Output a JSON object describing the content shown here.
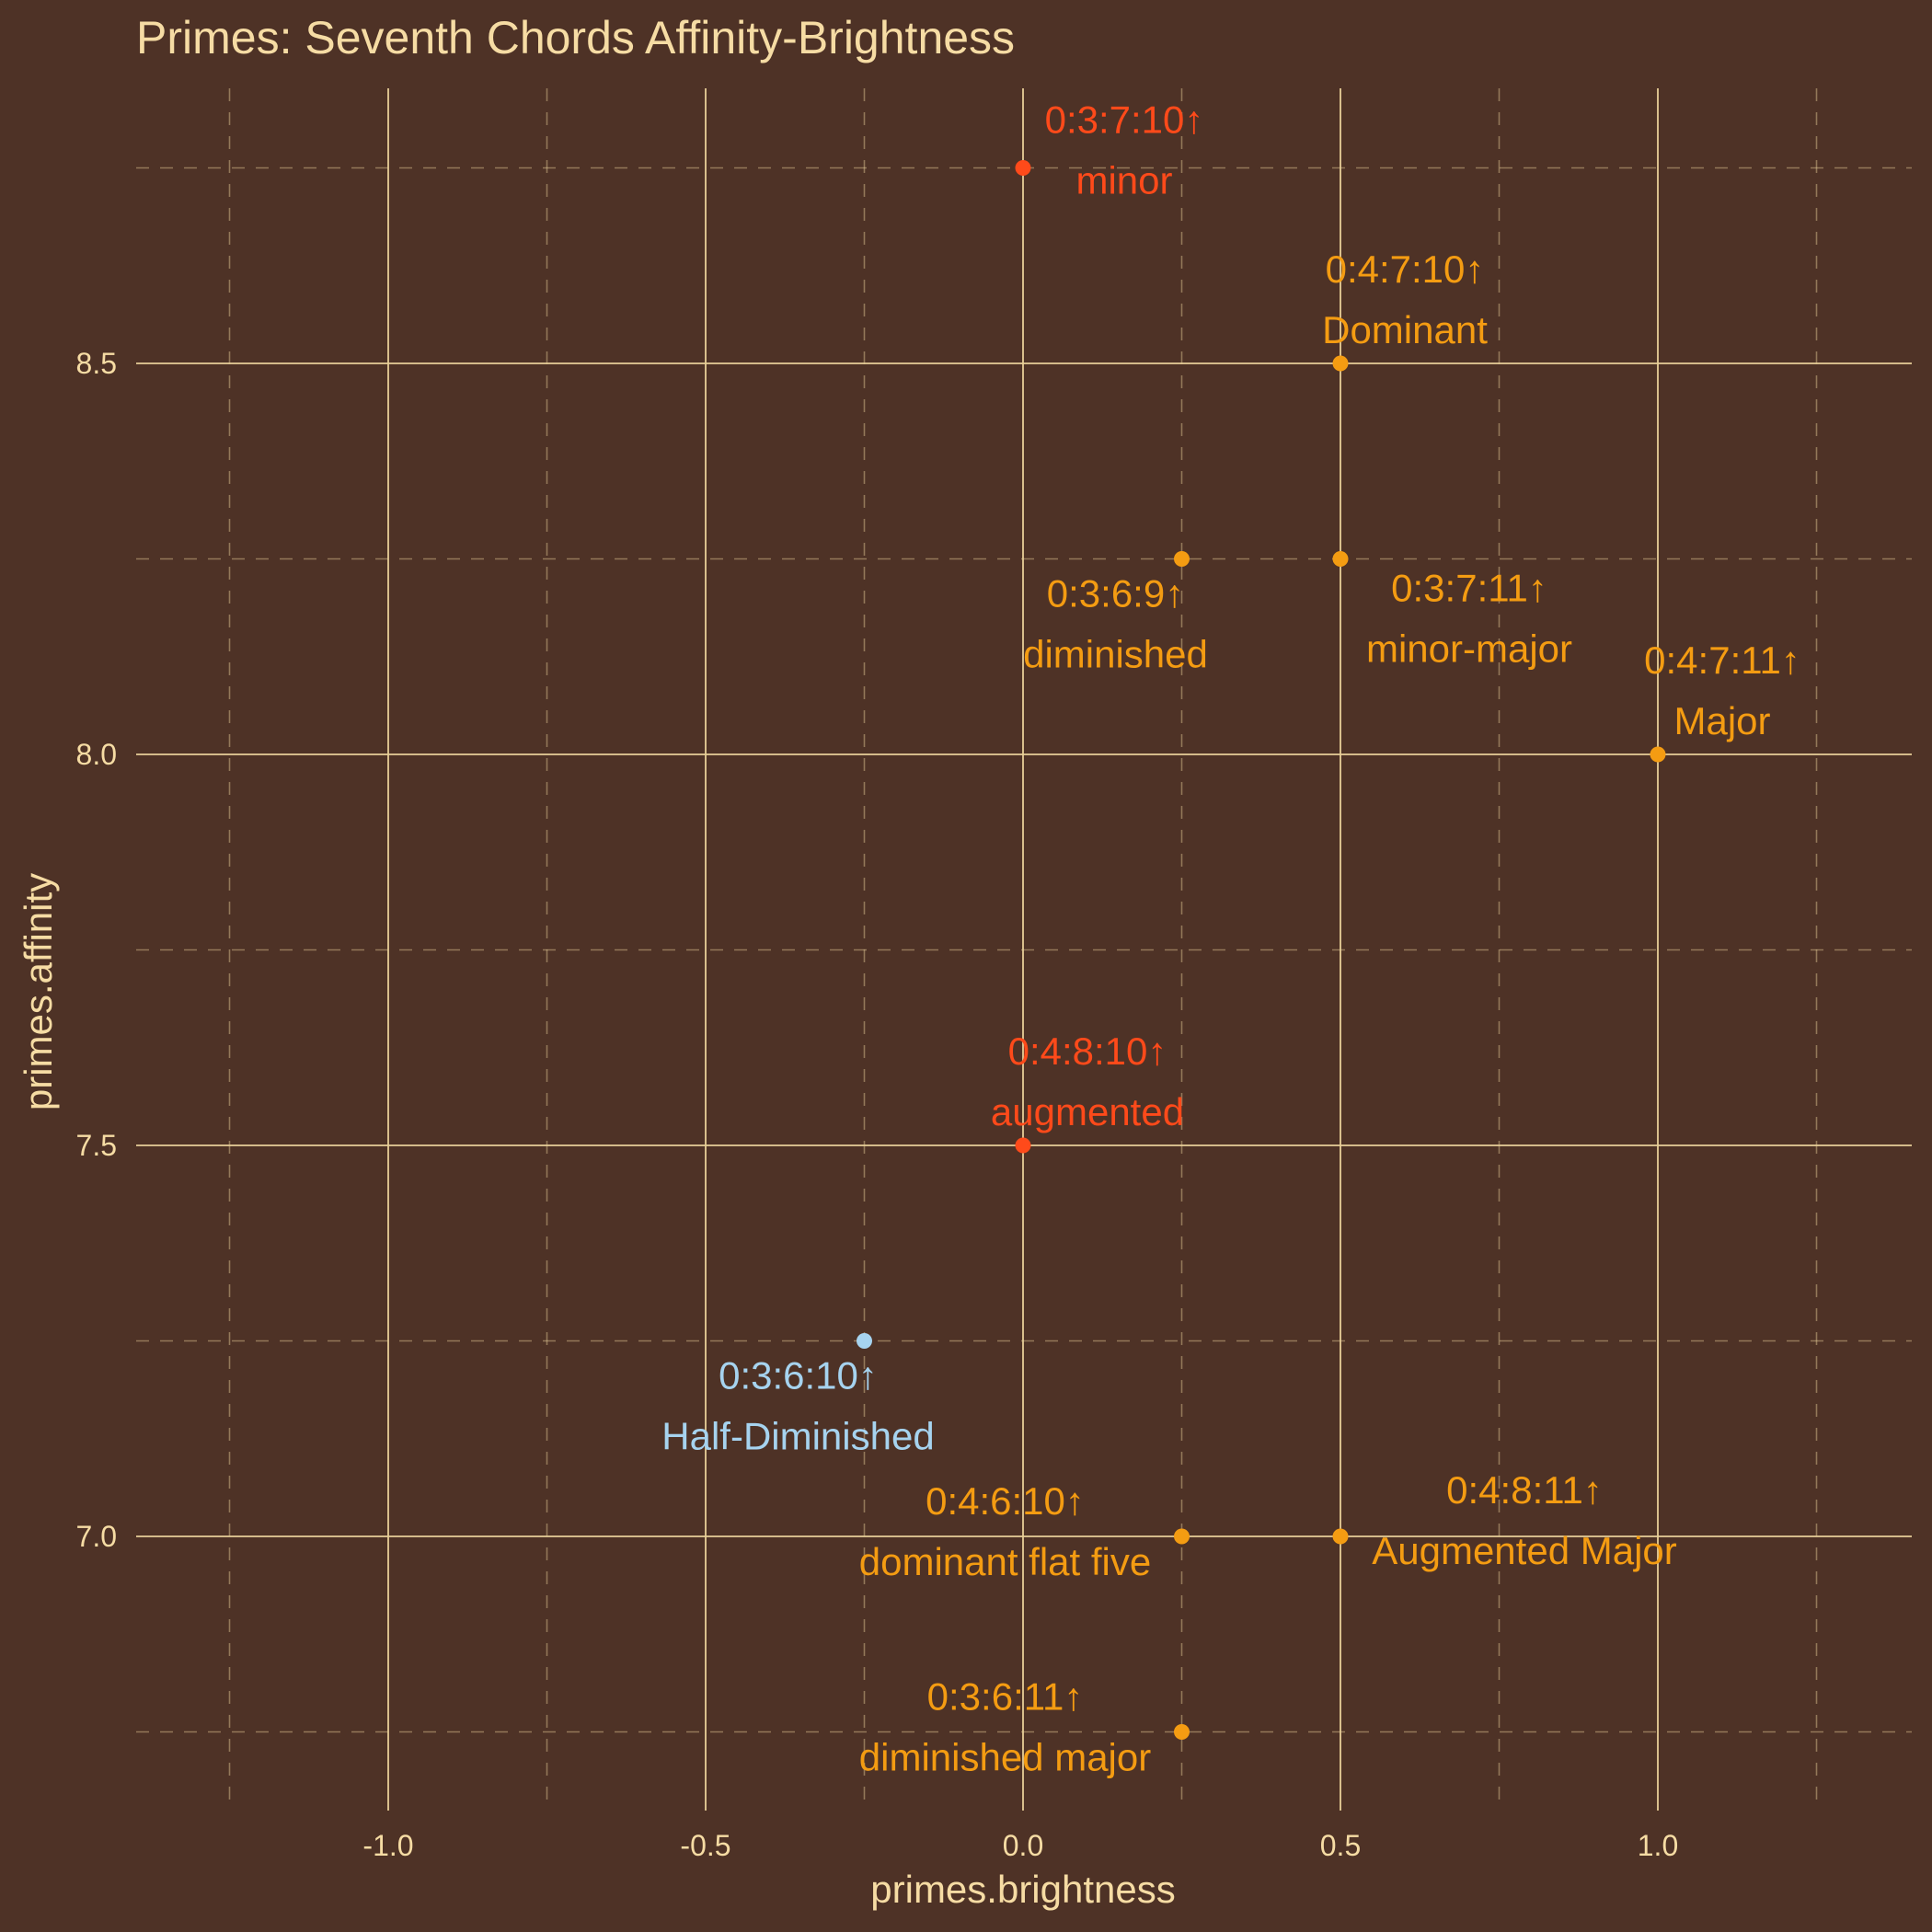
{
  "chart_data": {
    "type": "scatter",
    "title": "Primes: Seventh Chords Affinity-Brightness",
    "xlabel": "primes.brightness",
    "ylabel": "primes.affinity",
    "xlim": [
      -1.25,
      1.25
    ],
    "ylim": [
      6.75,
      8.75
    ],
    "x_ticks": [
      -1.0,
      -0.5,
      0.0,
      0.5,
      1.0
    ],
    "x_tick_labels": [
      "-1.0",
      "-0.5",
      "0.0",
      "0.5",
      "1.0"
    ],
    "y_ticks": [
      7.0,
      7.5,
      8.0,
      8.5
    ],
    "y_tick_labels": [
      "7.0",
      "7.5",
      "8.0",
      "8.5"
    ],
    "grid": true,
    "colors": {
      "background": "#4e3226",
      "text": "#f6dca4",
      "grid": "#e8cf98",
      "red": "#ff4a1a",
      "orange": "#f49c12",
      "blue": "#a6d3ef"
    },
    "points": [
      {
        "x": 0.0,
        "y": 8.75,
        "pcs": "0:3:7:10↑",
        "name": "minor",
        "color": "red",
        "label_pos": "right-above"
      },
      {
        "x": 0.5,
        "y": 8.5,
        "pcs": "0:4:7:10↑",
        "name": "Dominant",
        "color": "orange",
        "label_pos": "above"
      },
      {
        "x": 0.25,
        "y": 8.25,
        "pcs": "0:3:6:9↑",
        "name": "diminished",
        "color": "orange",
        "label_pos": "left-below"
      },
      {
        "x": 0.5,
        "y": 8.25,
        "pcs": "0:3:7:11↑",
        "name": "minor-major",
        "color": "orange",
        "label_pos": "right-below"
      },
      {
        "x": 1.0,
        "y": 8.0,
        "pcs": "0:4:7:11↑",
        "name": "Major",
        "color": "orange",
        "label_pos": "right-above"
      },
      {
        "x": 0.0,
        "y": 7.5,
        "pcs": "0:4:8:10↑",
        "name": "augmented",
        "color": "red",
        "label_pos": "above"
      },
      {
        "x": -0.25,
        "y": 7.25,
        "pcs": "0:3:6:10↑",
        "name": "Half-Diminished",
        "color": "blue",
        "label_pos": "left-below"
      },
      {
        "x": 0.25,
        "y": 7.0,
        "pcs": "0:4:6:10↑",
        "name": "dominant flat five",
        "color": "orange",
        "label_pos": "left-above"
      },
      {
        "x": 0.5,
        "y": 7.0,
        "pcs": "0:4:8:11↑",
        "name": "Augmented Major",
        "color": "orange",
        "label_pos": "right-above"
      },
      {
        "x": 0.25,
        "y": 6.75,
        "pcs": "0:3:6:11↑",
        "name": "diminished major",
        "color": "orange",
        "label_pos": "left-above"
      }
    ]
  }
}
